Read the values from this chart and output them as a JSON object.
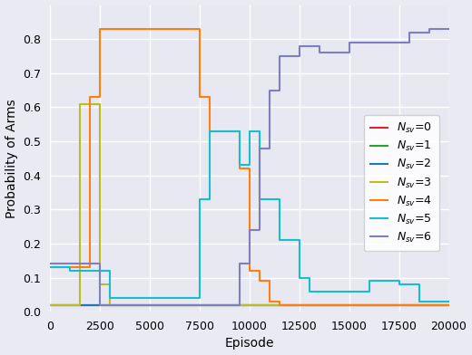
{
  "xlabel": "Episode",
  "ylabel": "Probability of Arms",
  "xlim": [
    0,
    20000
  ],
  "ylim": [
    0.0,
    0.9
  ],
  "yticks": [
    0.0,
    0.1,
    0.2,
    0.3,
    0.4,
    0.5,
    0.6,
    0.7,
    0.8
  ],
  "xticks": [
    0,
    2500,
    5000,
    7500,
    10000,
    12500,
    15000,
    17500,
    20000
  ],
  "axes_bg": "#e8e8f2",
  "fig_bg": "#eaeaf2",
  "series": [
    {
      "label": "0",
      "color": "#d62728",
      "x": [
        0,
        20000
      ],
      "y": [
        0.02,
        0.02
      ]
    },
    {
      "label": "1",
      "color": "#2ca02c",
      "x": [
        0,
        20000
      ],
      "y": [
        0.02,
        0.02
      ]
    },
    {
      "label": "2",
      "color": "#1f77b4",
      "x": [
        0,
        20000
      ],
      "y": [
        0.02,
        0.02
      ]
    },
    {
      "label": "3",
      "color": "#bcbd22",
      "x": [
        0,
        1500,
        2000,
        2500,
        3000,
        20000
      ],
      "y": [
        0.02,
        0.61,
        0.61,
        0.08,
        0.02,
        0.02
      ]
    },
    {
      "label": "4",
      "color": "#ff7f0e",
      "x": [
        0,
        1000,
        2000,
        2500,
        4500,
        7500,
        8000,
        9500,
        10000,
        10500,
        11000,
        11500,
        20000
      ],
      "y": [
        0.13,
        0.13,
        0.63,
        0.83,
        0.83,
        0.63,
        0.53,
        0.42,
        0.12,
        0.09,
        0.03,
        0.02,
        0.02
      ]
    },
    {
      "label": "5",
      "color": "#17becf",
      "x": [
        0,
        1000,
        3000,
        6500,
        7500,
        8000,
        9000,
        9500,
        10000,
        10500,
        11500,
        12500,
        13000,
        15000,
        16000,
        17500,
        18500,
        20000
      ],
      "y": [
        0.13,
        0.12,
        0.04,
        0.04,
        0.33,
        0.53,
        0.53,
        0.43,
        0.53,
        0.33,
        0.21,
        0.1,
        0.06,
        0.06,
        0.09,
        0.08,
        0.03,
        0.03
      ]
    },
    {
      "label": "6",
      "color": "#7f7fbd",
      "x": [
        0,
        1000,
        2500,
        9000,
        9500,
        10000,
        10500,
        11000,
        11500,
        12500,
        13500,
        15000,
        16000,
        17000,
        18000,
        19000,
        20000
      ],
      "y": [
        0.14,
        0.14,
        0.02,
        0.02,
        0.14,
        0.24,
        0.48,
        0.65,
        0.75,
        0.78,
        0.76,
        0.79,
        0.79,
        0.79,
        0.82,
        0.83,
        0.83
      ]
    }
  ]
}
